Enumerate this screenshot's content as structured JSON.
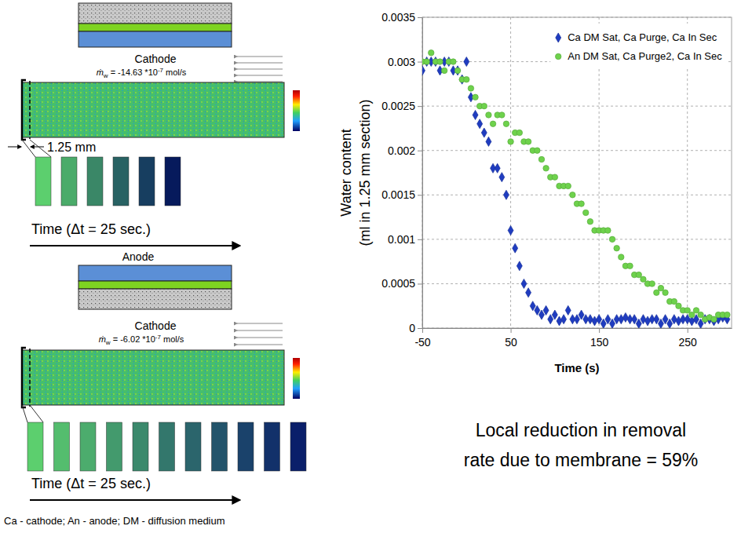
{
  "chart_data": {
    "type": "scatter",
    "x_label": "Time (s)",
    "y_label": [
      "Water content",
      "(ml in 1.25 mm section)"
    ],
    "xlim": [
      -50,
      300
    ],
    "xticks": [
      -50,
      50,
      150,
      250
    ],
    "ylim": [
      0,
      0.0035
    ],
    "yticks": [
      0,
      0.0005,
      0.001,
      0.0015,
      0.002,
      0.0025,
      0.003,
      0.0035
    ],
    "grid": true,
    "legend": "upper right",
    "series": [
      {
        "name": "Ca DM Sat, Ca Purge, Ca In Sec",
        "color": "#1f3cc0",
        "marker": "diamond",
        "x": [
          -50,
          -45,
          -40,
          -35,
          -30,
          -25,
          -20,
          -15,
          -10,
          -5,
          0,
          5,
          10,
          15,
          20,
          25,
          30,
          35,
          40,
          45,
          50,
          55,
          60,
          65,
          70,
          75,
          80,
          85,
          90,
          95,
          100,
          105,
          110,
          115,
          120,
          125,
          130,
          135,
          140,
          145,
          150,
          155,
          160,
          165,
          170,
          175,
          180,
          185,
          190,
          195,
          200,
          205,
          210,
          215,
          220,
          225,
          230,
          235,
          240,
          245,
          250,
          255,
          260,
          265,
          270,
          275,
          280,
          285,
          290,
          295
        ],
        "values": [
          0.0029,
          0.003,
          0.003,
          0.003,
          0.0029,
          0.003,
          0.003,
          0.0029,
          0.0029,
          0.0028,
          0.003,
          0.0026,
          0.0024,
          0.0023,
          0.0022,
          0.0021,
          0.0018,
          0.0018,
          0.0017,
          0.0015,
          0.0011,
          0.0009,
          0.0007,
          0.0005,
          0.0004,
          0.00025,
          0.0002,
          0.00015,
          0.0002,
          0.0001,
          0.00015,
          8e-05,
          0.0001,
          0.0002,
          0.0001,
          0.0001,
          0.00015,
          0.0001,
          0.0001,
          8e-05,
          0.0001,
          5e-05,
          0.0001,
          5e-05,
          0.0001,
          0.0001,
          0.00012,
          0.0001,
          0.0001,
          5e-05,
          0.0001,
          8e-05,
          0.0001,
          0.0001,
          5e-05,
          0.0001,
          5e-05,
          0.0001,
          8e-05,
          0.0001,
          0.0001,
          8e-05,
          0.0001,
          5e-05,
          0.0001,
          0.0001,
          8e-05,
          0.0001,
          0.00012,
          0.0001
        ]
      },
      {
        "name": "An DM Sat, Ca Purge2, Ca In Sec",
        "color": "#6ed24c",
        "marker": "circle",
        "x": [
          -50,
          -45,
          -40,
          -35,
          -30,
          -25,
          -20,
          -15,
          -10,
          -5,
          0,
          5,
          10,
          15,
          20,
          25,
          30,
          35,
          40,
          45,
          50,
          55,
          60,
          65,
          70,
          75,
          80,
          85,
          90,
          95,
          100,
          105,
          110,
          115,
          120,
          125,
          130,
          135,
          140,
          145,
          150,
          155,
          160,
          165,
          170,
          175,
          180,
          185,
          190,
          195,
          200,
          205,
          210,
          215,
          220,
          225,
          230,
          235,
          240,
          245,
          250,
          255,
          260,
          265,
          270,
          275,
          280,
          285,
          290,
          295
        ],
        "values": [
          0.003,
          0.003,
          0.0031,
          0.003,
          0.003,
          0.0029,
          0.003,
          0.003,
          0.0029,
          0.0028,
          0.0028,
          0.0027,
          0.0026,
          0.0025,
          0.0025,
          0.0024,
          0.0023,
          0.0024,
          0.0024,
          0.0023,
          0.0021,
          0.0022,
          0.0022,
          0.0021,
          0.0021,
          0.002,
          0.002,
          0.0019,
          0.0018,
          0.0017,
          0.0017,
          0.0016,
          0.0016,
          0.0016,
          0.0015,
          0.0014,
          0.0014,
          0.0013,
          0.0012,
          0.0011,
          0.0011,
          0.0011,
          0.0011,
          0.001,
          0.0009,
          0.0008,
          0.0007,
          0.0007,
          0.0006,
          0.0006,
          0.00055,
          0.0005,
          0.0005,
          0.0004,
          0.00045,
          0.0004,
          0.0003,
          0.0003,
          0.00025,
          0.0002,
          0.0002,
          0.00015,
          0.0002,
          0.00015,
          0.0001,
          0.00012,
          0.0001,
          0.00015,
          0.00015,
          0.00015
        ]
      }
    ],
    "annotation": [
      "Local reduction in removal",
      "rate due to membrane = 59%"
    ]
  },
  "diagram": {
    "panels": [
      {
        "cathode_label": "Cathode",
        "flow": {
          "symbol": "ṁ",
          "subscript": "w",
          "prefix": " = -14.63 *10",
          "exponent": "-7",
          "unit": " mol/s"
        },
        "dimension": "1.25 mm",
        "time_axis": "Time (Δt = 25 sec.)"
      },
      {
        "anode_label": "Anode",
        "cathode_label": "Cathode",
        "flow": {
          "symbol": "ṁ",
          "subscript": "w",
          "prefix": " = -6.02 *10",
          "exponent": "-7",
          "unit": " mol/s"
        },
        "time_axis": "Time (Δt = 25 sec.)"
      }
    ],
    "footnote": "Ca - cathode; An - anode; DM - diffusion medium"
  }
}
